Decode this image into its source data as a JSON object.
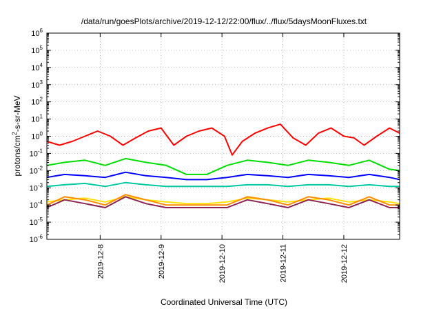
{
  "chart_data": {
    "type": "line",
    "title": "/data/run/goesPlots/archive/2019-12-12/22:00/flux/../flux/5daysMoonFluxes.txt",
    "xlabel": "Coordinated Universal Time (UTC)",
    "ylabel_parts": [
      "protons/cm",
      "2",
      "-s-sr-MeV"
    ],
    "y_scale": "log",
    "ylim": [
      1e-06,
      1000000.0
    ],
    "y_ticks": [
      {
        "base": "10",
        "exp": "-6"
      },
      {
        "base": "10",
        "exp": "-5"
      },
      {
        "base": "10",
        "exp": "-4"
      },
      {
        "base": "10",
        "exp": "-3"
      },
      {
        "base": "10",
        "exp": "-2"
      },
      {
        "base": "10",
        "exp": "-1"
      },
      {
        "base": "10",
        "exp": "0"
      },
      {
        "base": "10",
        "exp": "1"
      },
      {
        "base": "10",
        "exp": "2"
      },
      {
        "base": "10",
        "exp": "3"
      },
      {
        "base": "10",
        "exp": "4"
      },
      {
        "base": "10",
        "exp": "5"
      },
      {
        "base": "10",
        "exp": "6"
      }
    ],
    "xlim": [
      "2019-12-07T03:00",
      "2019-12-12T22:00"
    ],
    "x_ticks": [
      "2019-12-8",
      "2019-12-9",
      "2019-12-10",
      "2019-12-11",
      "2019-12-12"
    ],
    "x_tick_dates": [
      "2019-12-08T00:00",
      "2019-12-09T00:00",
      "2019-12-10T00:00",
      "2019-12-11T00:00",
      "2019-12-12T00:00"
    ],
    "grid": true,
    "legend": "none",
    "series": [
      {
        "color": "#ff0000",
        "x": [
          "2019-12-07T03:00",
          "2019-12-07T08:00",
          "2019-12-07T13:00",
          "2019-12-07T18:00",
          "2019-12-07T23:00",
          "2019-12-08T04:00",
          "2019-12-08T09:00",
          "2019-12-08T14:00",
          "2019-12-08T19:00",
          "2019-12-09T00:00",
          "2019-12-09T05:00",
          "2019-12-09T10:00",
          "2019-12-09T15:00",
          "2019-12-09T20:00",
          "2019-12-10T01:00",
          "2019-12-10T04:00",
          "2019-12-10T08:00",
          "2019-12-10T13:00",
          "2019-12-10T18:00",
          "2019-12-10T23:00",
          "2019-12-11T04:00",
          "2019-12-11T09:00",
          "2019-12-11T14:00",
          "2019-12-11T19:00",
          "2019-12-12T00:00",
          "2019-12-12T04:00",
          "2019-12-12T08:00",
          "2019-12-12T13:00",
          "2019-12-12T18:00",
          "2019-12-12T22:00"
        ],
        "values": [
          0.5,
          0.3,
          0.5,
          1.0,
          2.0,
          1.0,
          0.3,
          0.8,
          2.0,
          3.0,
          0.3,
          1.0,
          2.0,
          3.0,
          1.0,
          0.08,
          0.5,
          1.5,
          3.0,
          5.0,
          0.8,
          0.3,
          1.5,
          3.0,
          1.0,
          0.8,
          0.3,
          1.0,
          3.0,
          1.5
        ]
      },
      {
        "color": "#00dd00",
        "x": [
          "2019-12-07T03:00",
          "2019-12-07T10:00",
          "2019-12-07T18:00",
          "2019-12-08T02:00",
          "2019-12-08T10:00",
          "2019-12-08T18:00",
          "2019-12-09T02:00",
          "2019-12-09T10:00",
          "2019-12-09T18:00",
          "2019-12-10T02:00",
          "2019-12-10T10:00",
          "2019-12-10T18:00",
          "2019-12-11T02:00",
          "2019-12-11T10:00",
          "2019-12-11T18:00",
          "2019-12-12T02:00",
          "2019-12-12T10:00",
          "2019-12-12T18:00",
          "2019-12-12T22:00"
        ],
        "values": [
          0.02,
          0.03,
          0.04,
          0.02,
          0.05,
          0.03,
          0.02,
          0.006,
          0.006,
          0.02,
          0.04,
          0.03,
          0.02,
          0.04,
          0.03,
          0.02,
          0.04,
          0.012,
          0.01
        ]
      },
      {
        "color": "#0000ff",
        "x": [
          "2019-12-07T03:00",
          "2019-12-07T10:00",
          "2019-12-07T18:00",
          "2019-12-08T02:00",
          "2019-12-08T10:00",
          "2019-12-08T18:00",
          "2019-12-09T02:00",
          "2019-12-09T10:00",
          "2019-12-09T18:00",
          "2019-12-10T02:00",
          "2019-12-10T10:00",
          "2019-12-10T18:00",
          "2019-12-11T02:00",
          "2019-12-11T10:00",
          "2019-12-11T18:00",
          "2019-12-12T02:00",
          "2019-12-12T10:00",
          "2019-12-12T18:00",
          "2019-12-12T22:00"
        ],
        "values": [
          0.004,
          0.006,
          0.005,
          0.004,
          0.008,
          0.005,
          0.004,
          0.003,
          0.003,
          0.004,
          0.006,
          0.005,
          0.004,
          0.006,
          0.005,
          0.004,
          0.006,
          0.004,
          0.003
        ]
      },
      {
        "color": "#00c8a0",
        "x": [
          "2019-12-07T03:00",
          "2019-12-07T10:00",
          "2019-12-07T18:00",
          "2019-12-08T02:00",
          "2019-12-08T10:00",
          "2019-12-08T18:00",
          "2019-12-09T02:00",
          "2019-12-09T10:00",
          "2019-12-09T18:00",
          "2019-12-10T02:00",
          "2019-12-10T10:00",
          "2019-12-10T18:00",
          "2019-12-11T02:00",
          "2019-12-11T10:00",
          "2019-12-11T18:00",
          "2019-12-12T02:00",
          "2019-12-12T10:00",
          "2019-12-12T18:00",
          "2019-12-12T22:00"
        ],
        "values": [
          0.0012,
          0.0015,
          0.0018,
          0.0012,
          0.002,
          0.0015,
          0.0012,
          0.0012,
          0.0012,
          0.0012,
          0.0015,
          0.0015,
          0.0012,
          0.0015,
          0.0015,
          0.0012,
          0.0015,
          0.0012,
          0.0012
        ]
      },
      {
        "color": "#ffe000",
        "x": [
          "2019-12-07T03:00",
          "2019-12-07T10:00",
          "2019-12-07T18:00",
          "2019-12-08T02:00",
          "2019-12-08T10:00",
          "2019-12-08T18:00",
          "2019-12-09T02:00",
          "2019-12-09T10:00",
          "2019-12-09T18:00",
          "2019-12-10T02:00",
          "2019-12-10T10:00",
          "2019-12-10T18:00",
          "2019-12-11T02:00",
          "2019-12-11T10:00",
          "2019-12-11T18:00",
          "2019-12-12T02:00",
          "2019-12-12T10:00",
          "2019-12-12T18:00",
          "2019-12-12T22:00"
        ],
        "values": [
          0.00015,
          0.0002,
          0.00025,
          0.00015,
          0.0003,
          0.0002,
          0.00015,
          0.00012,
          0.00012,
          0.00015,
          0.00025,
          0.0002,
          0.00015,
          0.0002,
          0.00025,
          0.00015,
          0.0002,
          0.00015,
          0.00012
        ]
      },
      {
        "color": "#ff8c00",
        "x": [
          "2019-12-07T03:00",
          "2019-12-07T10:00",
          "2019-12-07T18:00",
          "2019-12-08T02:00",
          "2019-12-08T10:00",
          "2019-12-08T18:00",
          "2019-12-09T02:00",
          "2019-12-09T10:00",
          "2019-12-09T18:00",
          "2019-12-10T02:00",
          "2019-12-10T10:00",
          "2019-12-10T18:00",
          "2019-12-11T02:00",
          "2019-12-11T10:00",
          "2019-12-11T18:00",
          "2019-12-12T02:00",
          "2019-12-12T10:00",
          "2019-12-12T18:00",
          "2019-12-12T22:00"
        ],
        "values": [
          0.0001,
          0.0003,
          0.0002,
          0.0001,
          0.0004,
          0.0002,
          0.0001,
          0.0001,
          0.0001,
          0.0001,
          0.0003,
          0.0002,
          0.0001,
          0.0003,
          0.0002,
          0.0001,
          0.0003,
          0.0001,
          0.0001
        ]
      },
      {
        "color": "#8b2252",
        "x": [
          "2019-12-07T03:00",
          "2019-12-07T10:00",
          "2019-12-07T18:00",
          "2019-12-08T02:00",
          "2019-12-08T10:00",
          "2019-12-08T18:00",
          "2019-12-09T02:00",
          "2019-12-09T10:00",
          "2019-12-09T18:00",
          "2019-12-10T02:00",
          "2019-12-10T10:00",
          "2019-12-10T18:00",
          "2019-12-11T02:00",
          "2019-12-11T10:00",
          "2019-12-11T18:00",
          "2019-12-12T02:00",
          "2019-12-12T10:00",
          "2019-12-12T18:00",
          "2019-12-12T22:00"
        ],
        "values": [
          7e-05,
          0.0002,
          0.00012,
          7e-05,
          0.0003,
          0.00012,
          7e-05,
          7e-05,
          7e-05,
          7e-05,
          0.0002,
          0.00012,
          7e-05,
          0.0002,
          0.00012,
          7e-05,
          0.0002,
          7e-05,
          7e-05
        ]
      }
    ]
  }
}
